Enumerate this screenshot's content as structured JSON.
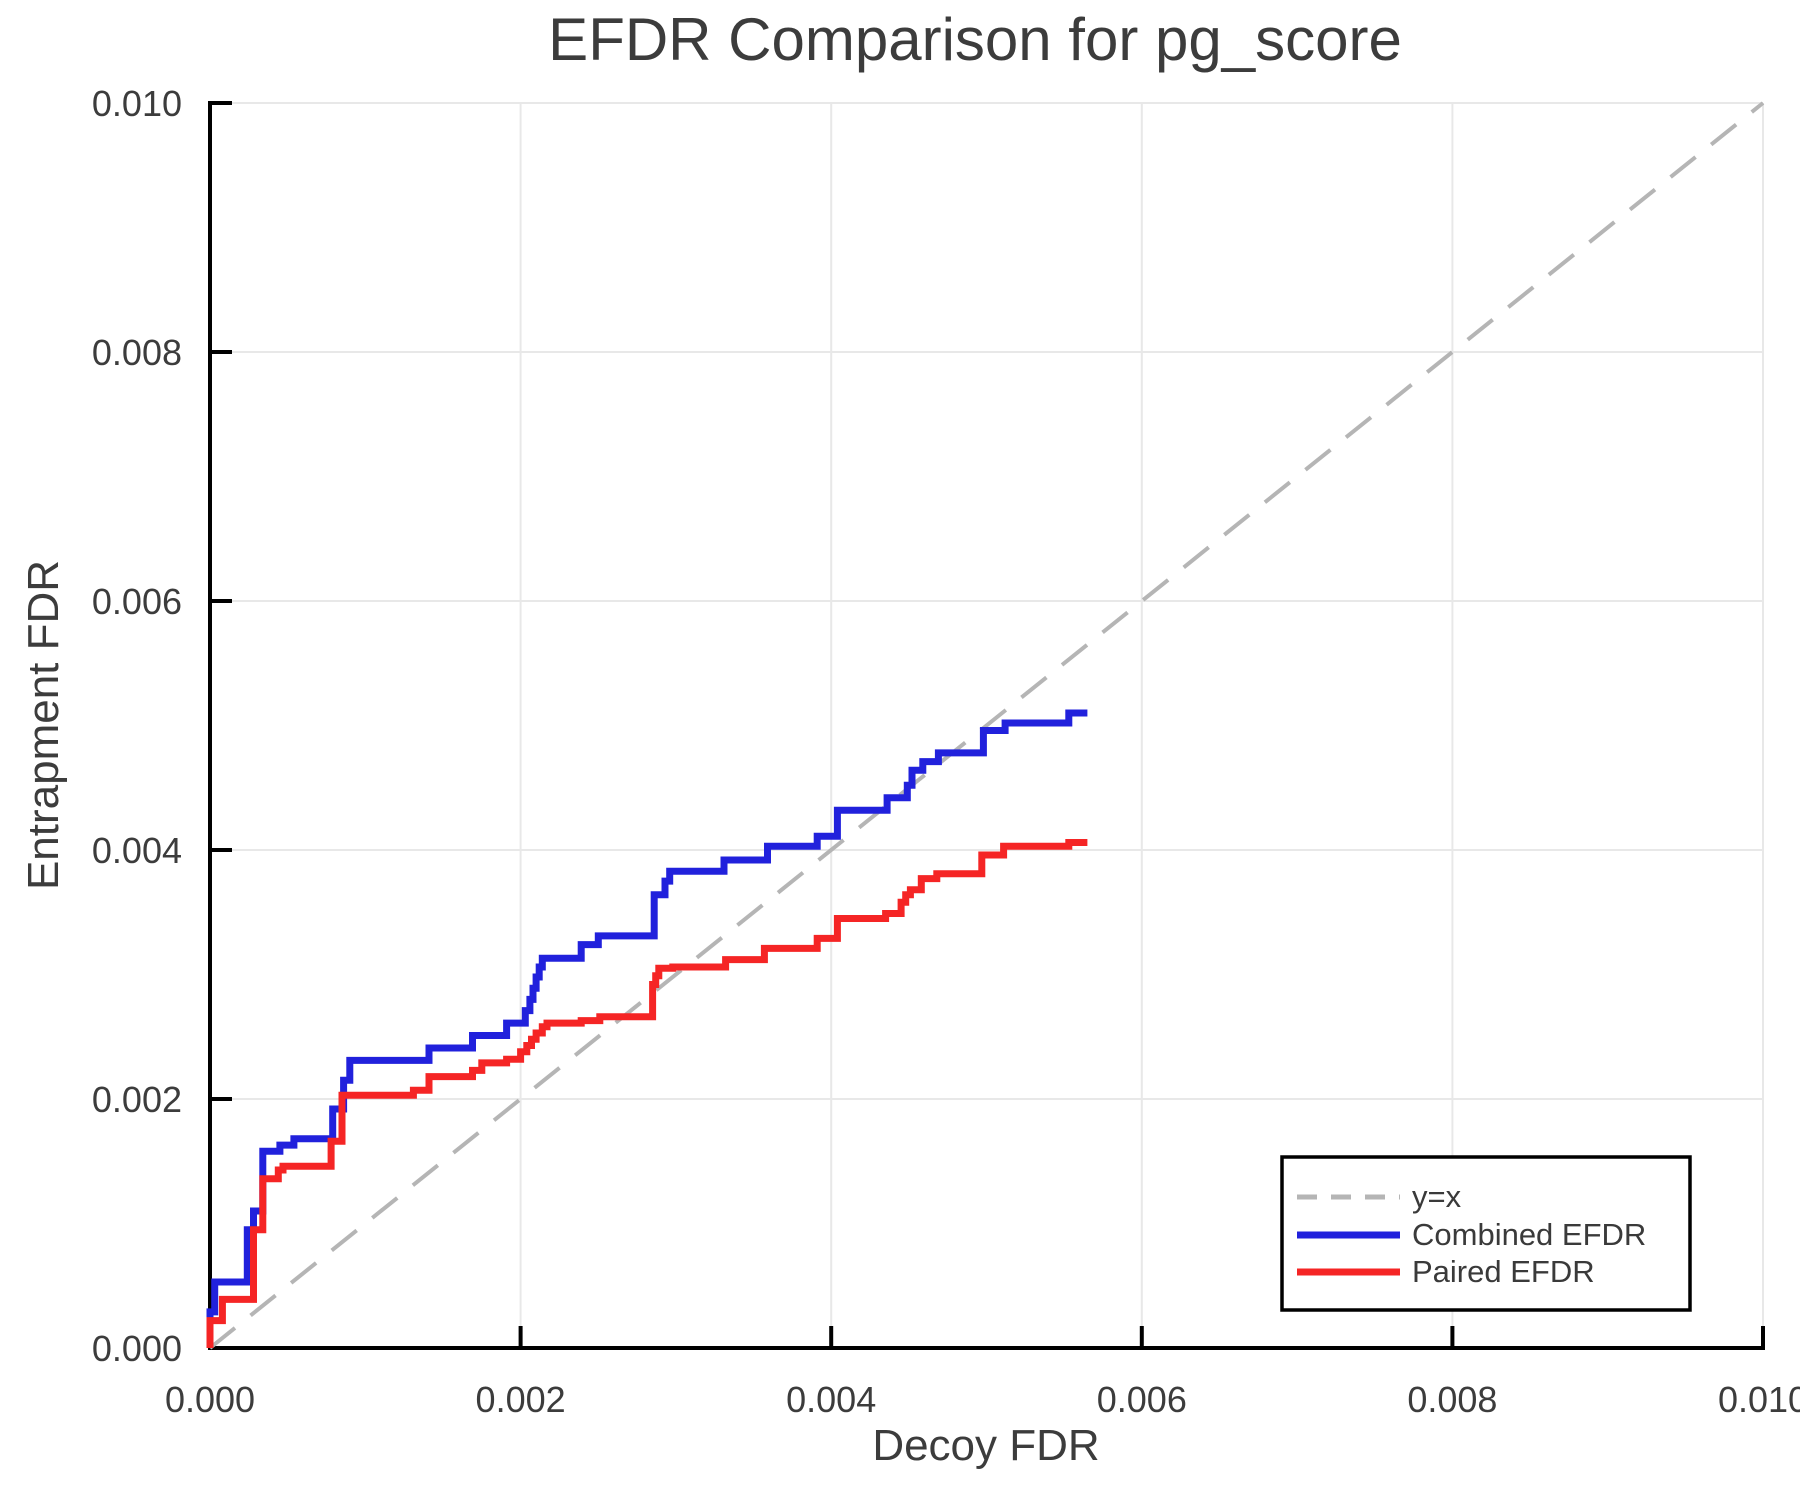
{
  "chart_data": {
    "type": "line",
    "subtype": "step-fdr-curves",
    "title": "EFDR Comparison for pg_score",
    "xlabel": "Decoy FDR",
    "ylabel": "Entrapment FDR",
    "xlim": [
      0.0,
      0.01
    ],
    "ylim": [
      0.0,
      0.01
    ],
    "x_ticks": [
      0.0,
      0.002,
      0.004,
      0.006,
      0.008,
      0.01
    ],
    "y_ticks": [
      0.0,
      0.002,
      0.004,
      0.006,
      0.008,
      0.01
    ],
    "x_tick_labels": [
      "0.000",
      "0.002",
      "0.004",
      "0.006",
      "0.008",
      "0.010"
    ],
    "y_tick_labels": [
      "0.000",
      "0.002",
      "0.004",
      "0.006",
      "0.008",
      "0.010"
    ],
    "grid": true,
    "legend_position": "lower right",
    "colors": {
      "grid": "#e8e8e8",
      "axis": "#000000",
      "text": "#3c3c3c",
      "background": "#ffffff",
      "identity_line": "#b5b5b5",
      "combined": "#2121dc",
      "paired": "#f52525"
    },
    "series": [
      {
        "name": "y=x",
        "color": "#b5b5b5",
        "style": "dashed",
        "points": [
          [
            0.0,
            0.0
          ],
          [
            0.01,
            0.01
          ]
        ]
      },
      {
        "name": "Combined EFDR",
        "color": "#2121dc",
        "style": "solid",
        "points": [
          [
            0.0,
            0.0
          ],
          [
            0.0,
            0.00029
          ],
          [
            3e-05,
            0.00029
          ],
          [
            3e-05,
            0.00053
          ],
          [
            0.00024,
            0.00053
          ],
          [
            0.00024,
            0.00095
          ],
          [
            0.00028,
            0.00095
          ],
          [
            0.00028,
            0.0011
          ],
          [
            0.00034,
            0.0011
          ],
          [
            0.00034,
            0.00158
          ],
          [
            0.00045,
            0.00158
          ],
          [
            0.00045,
            0.00163
          ],
          [
            0.00054,
            0.00163
          ],
          [
            0.00054,
            0.00168
          ],
          [
            0.00079,
            0.00168
          ],
          [
            0.00079,
            0.00192
          ],
          [
            0.00086,
            0.00192
          ],
          [
            0.00086,
            0.00215
          ],
          [
            0.0009,
            0.00215
          ],
          [
            0.0009,
            0.00231
          ],
          [
            0.00141,
            0.00231
          ],
          [
            0.00141,
            0.00241
          ],
          [
            0.00169,
            0.00241
          ],
          [
            0.00169,
            0.00251
          ],
          [
            0.00191,
            0.00251
          ],
          [
            0.00191,
            0.00261
          ],
          [
            0.00203,
            0.00261
          ],
          [
            0.00203,
            0.00271
          ],
          [
            0.00206,
            0.00271
          ],
          [
            0.00206,
            0.0028
          ],
          [
            0.00208,
            0.0028
          ],
          [
            0.00208,
            0.00289
          ],
          [
            0.0021,
            0.00289
          ],
          [
            0.0021,
            0.00298
          ],
          [
            0.00212,
            0.00298
          ],
          [
            0.00212,
            0.00306
          ],
          [
            0.00214,
            0.00306
          ],
          [
            0.00214,
            0.00313
          ],
          [
            0.00239,
            0.00313
          ],
          [
            0.00239,
            0.00324
          ],
          [
            0.0025,
            0.00324
          ],
          [
            0.0025,
            0.00331
          ],
          [
            0.00286,
            0.00331
          ],
          [
            0.00286,
            0.00364
          ],
          [
            0.00293,
            0.00364
          ],
          [
            0.00293,
            0.00375
          ],
          [
            0.00296,
            0.00375
          ],
          [
            0.00296,
            0.00383
          ],
          [
            0.00331,
            0.00383
          ],
          [
            0.00331,
            0.00392
          ],
          [
            0.00359,
            0.00392
          ],
          [
            0.00359,
            0.00403
          ],
          [
            0.00391,
            0.00403
          ],
          [
            0.00391,
            0.00411
          ],
          [
            0.00404,
            0.00411
          ],
          [
            0.00404,
            0.00432
          ],
          [
            0.00436,
            0.00432
          ],
          [
            0.00436,
            0.00442
          ],
          [
            0.00449,
            0.00442
          ],
          [
            0.00449,
            0.00452
          ],
          [
            0.00452,
            0.00452
          ],
          [
            0.00452,
            0.00464
          ],
          [
            0.00459,
            0.00464
          ],
          [
            0.00459,
            0.00471
          ],
          [
            0.00469,
            0.00471
          ],
          [
            0.00469,
            0.00478
          ],
          [
            0.00498,
            0.00478
          ],
          [
            0.00498,
            0.00496
          ],
          [
            0.00512,
            0.00496
          ],
          [
            0.00512,
            0.00502
          ],
          [
            0.00553,
            0.00502
          ],
          [
            0.00553,
            0.0051
          ],
          [
            0.00565,
            0.0051
          ]
        ]
      },
      {
        "name": "Paired EFDR",
        "color": "#f52525",
        "style": "solid",
        "points": [
          [
            0.0,
            0.0
          ],
          [
            0.0,
            0.00022
          ],
          [
            8e-05,
            0.00022
          ],
          [
            8e-05,
            0.00039
          ],
          [
            0.00028,
            0.00039
          ],
          [
            0.00028,
            0.00095
          ],
          [
            0.00034,
            0.00095
          ],
          [
            0.00034,
            0.00136
          ],
          [
            0.00044,
            0.00136
          ],
          [
            0.00044,
            0.00143
          ],
          [
            0.00047,
            0.00143
          ],
          [
            0.00047,
            0.00146
          ],
          [
            0.00078,
            0.00146
          ],
          [
            0.00078,
            0.00166
          ],
          [
            0.00085,
            0.00166
          ],
          [
            0.00085,
            0.00203
          ],
          [
            0.00131,
            0.00203
          ],
          [
            0.00131,
            0.00207
          ],
          [
            0.00141,
            0.00207
          ],
          [
            0.00141,
            0.00218
          ],
          [
            0.00169,
            0.00218
          ],
          [
            0.00169,
            0.00223
          ],
          [
            0.00175,
            0.00223
          ],
          [
            0.00175,
            0.00229
          ],
          [
            0.00191,
            0.00229
          ],
          [
            0.00191,
            0.00232
          ],
          [
            0.002,
            0.00232
          ],
          [
            0.002,
            0.00238
          ],
          [
            0.00204,
            0.00238
          ],
          [
            0.00204,
            0.00243
          ],
          [
            0.00207,
            0.00243
          ],
          [
            0.00207,
            0.00248
          ],
          [
            0.0021,
            0.00248
          ],
          [
            0.0021,
            0.00253
          ],
          [
            0.00214,
            0.00253
          ],
          [
            0.00214,
            0.00258
          ],
          [
            0.00217,
            0.00258
          ],
          [
            0.00217,
            0.00261
          ],
          [
            0.00239,
            0.00261
          ],
          [
            0.00239,
            0.00263
          ],
          [
            0.00251,
            0.00263
          ],
          [
            0.00251,
            0.00266
          ],
          [
            0.00285,
            0.00266
          ],
          [
            0.00285,
            0.00292
          ],
          [
            0.00287,
            0.00292
          ],
          [
            0.00287,
            0.00299
          ],
          [
            0.00289,
            0.00299
          ],
          [
            0.00289,
            0.00305
          ],
          [
            0.00298,
            0.00305
          ],
          [
            0.00298,
            0.00306
          ],
          [
            0.00332,
            0.00306
          ],
          [
            0.00332,
            0.00312
          ],
          [
            0.00357,
            0.00312
          ],
          [
            0.00357,
            0.00321
          ],
          [
            0.00391,
            0.00321
          ],
          [
            0.00391,
            0.00329
          ],
          [
            0.00404,
            0.00329
          ],
          [
            0.00404,
            0.00345
          ],
          [
            0.00435,
            0.00345
          ],
          [
            0.00435,
            0.00349
          ],
          [
            0.00445,
            0.00349
          ],
          [
            0.00445,
            0.00358
          ],
          [
            0.00448,
            0.00358
          ],
          [
            0.00448,
            0.00364
          ],
          [
            0.00451,
            0.00364
          ],
          [
            0.00451,
            0.00368
          ],
          [
            0.00458,
            0.00368
          ],
          [
            0.00458,
            0.00377
          ],
          [
            0.00468,
            0.00377
          ],
          [
            0.00468,
            0.00381
          ],
          [
            0.00497,
            0.00381
          ],
          [
            0.00497,
            0.00396
          ],
          [
            0.00511,
            0.00396
          ],
          [
            0.00511,
            0.00403
          ],
          [
            0.00553,
            0.00403
          ],
          [
            0.00553,
            0.00406
          ],
          [
            0.00565,
            0.00406
          ]
        ]
      }
    ]
  }
}
